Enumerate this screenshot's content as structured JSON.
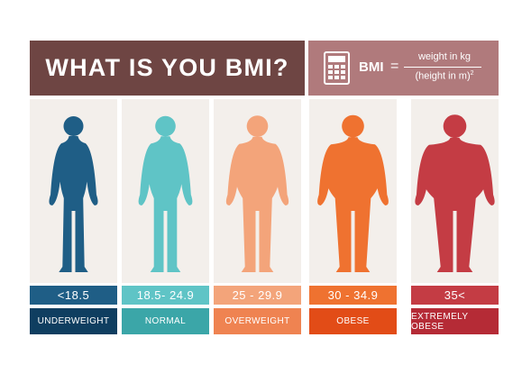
{
  "header": {
    "title": "WHAT IS YOU BMI?",
    "formula_label": "BMI",
    "formula_eq": "=",
    "numerator": "weight in kg",
    "denominator": "(height in m)",
    "exponent": "2",
    "title_bg": "#6e4543",
    "formula_bg": "#b07a7c"
  },
  "categories": [
    {
      "range": "<18.5",
      "label": "UNDERWEIGHT",
      "figure_color": "#1f5e86",
      "range_color": "#1f5e86",
      "label_color": "#0f3e60",
      "icon": "thin-person-icon"
    },
    {
      "range": "18.5- 24.9",
      "label": "NORMAL",
      "figure_color": "#5fc4c6",
      "range_color": "#5fc4c6",
      "label_color": "#3ba6a8",
      "icon": "normal-person-icon"
    },
    {
      "range": "25 - 29.9",
      "label": "OVERWEIGHT",
      "figure_color": "#f3a47a",
      "range_color": "#f3a47a",
      "label_color": "#ef8351",
      "icon": "overweight-person-icon"
    },
    {
      "range": "30 - 34.9",
      "label": "OBESE",
      "figure_color": "#ef7230",
      "range_color": "#ef7230",
      "label_color": "#e24c17",
      "icon": "obese-person-icon"
    },
    {
      "range": "35<",
      "label": "EXTREMELY OBESE",
      "figure_color": "#c43c44",
      "range_color": "#c43c44",
      "label_color": "#b52b36",
      "icon": "extremely-obese-person-icon"
    }
  ]
}
